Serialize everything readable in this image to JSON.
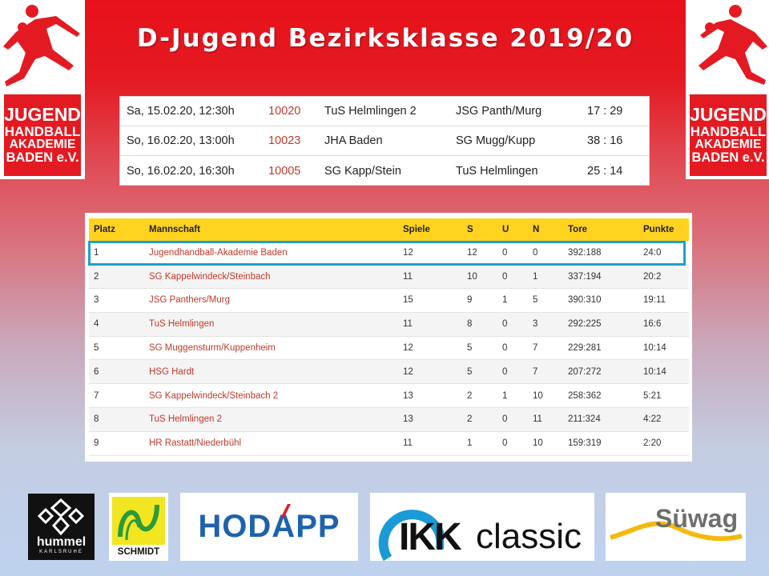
{
  "title": "D-Jugend Bezirksklasse 2019/20",
  "logo": {
    "l1": "JUGEND",
    "l2": "HANDBALL",
    "l3": "AKADEMIE",
    "l4": "BADEN e.V."
  },
  "results": [
    {
      "date": "Sa, 15.02.20, 12:30h",
      "num": "10020",
      "home": "TuS Helmlingen 2",
      "away": "JSG Panth/Murg",
      "score": "17 : 29"
    },
    {
      "date": "So, 16.02.20, 13:00h",
      "num": "10023",
      "home": "JHA Baden",
      "away": "SG Mugg/Kupp",
      "score": "38 : 16"
    },
    {
      "date": "So, 16.02.20, 16:30h",
      "num": "10005",
      "home": "SG Kapp/Stein",
      "away": "TuS Helmlingen",
      "score": "25 : 14"
    }
  ],
  "standings": {
    "headers": [
      "Platz",
      "Mannschaft",
      "Spiele",
      "S",
      "U",
      "N",
      "Tore",
      "Punkte"
    ],
    "rows": [
      [
        "1",
        "Jugendhandball-Akademie Baden",
        "12",
        "12",
        "0",
        "0",
        "392:188",
        "24:0"
      ],
      [
        "2",
        "SG Kappelwindeck/Steinbach",
        "11",
        "10",
        "0",
        "1",
        "337:194",
        "20:2"
      ],
      [
        "3",
        "JSG Panthers/Murg",
        "15",
        "9",
        "1",
        "5",
        "390:310",
        "19:11"
      ],
      [
        "4",
        "TuS Helmlingen",
        "11",
        "8",
        "0",
        "3",
        "292:225",
        "16:6"
      ],
      [
        "5",
        "SG Muggensturm/Kuppenheim",
        "12",
        "5",
        "0",
        "7",
        "229:281",
        "10:14"
      ],
      [
        "6",
        "HSG Hardt",
        "12",
        "5",
        "0",
        "7",
        "207:272",
        "10:14"
      ],
      [
        "7",
        "SG Kappelwindeck/Steinbach 2",
        "13",
        "2",
        "1",
        "10",
        "258:362",
        "5:21"
      ],
      [
        "8",
        "TuS Helmlingen 2",
        "13",
        "2",
        "0",
        "11",
        "211:324",
        "4:22"
      ],
      [
        "9",
        "HR Rastatt/Niederbühl",
        "11",
        "1",
        "0",
        "10",
        "159:319",
        "2:20"
      ]
    ]
  },
  "sponsors": {
    "hummel": "hummel",
    "hummel_sub": "KARLSRUHE",
    "schmidt": "SCHMIDT",
    "hodapp": "HODAPP",
    "ikk_bold": "IKK",
    "ikk_light": "classic",
    "suewag": "Süwag"
  },
  "colors": {
    "brand_red": "#e41a22",
    "table_header": "#ffd31f",
    "highlight": "#1fa0cc",
    "team_link": "#c0392b"
  }
}
